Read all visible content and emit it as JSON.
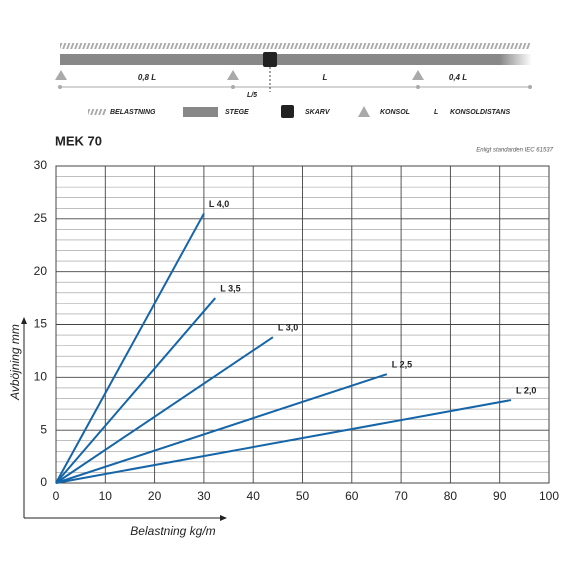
{
  "diagram": {
    "spans": [
      "0,8 L",
      "L",
      "0,4 L"
    ],
    "splice_offset": "L/5",
    "legend": [
      "BELASTNING",
      "STEGE",
      "SKARV",
      "KONSOL",
      "L",
      "KONSOLDISTANS"
    ]
  },
  "chart_data": {
    "type": "line",
    "title": "MEK 70",
    "subtitle": "Enligt standarden IEC 61537",
    "xlabel": "Belastning kg/m",
    "ylabel": "Avböjning mm",
    "xlim": [
      0,
      100
    ],
    "xticks": [
      0,
      10,
      20,
      30,
      40,
      50,
      60,
      70,
      80,
      90,
      100
    ],
    "ylim": [
      0,
      30
    ],
    "yticks": [
      0,
      5,
      10,
      15,
      20,
      25,
      30
    ],
    "grid": true,
    "minor_grid": true,
    "series": [
      {
        "name": "L 4,0",
        "color": "#1565a8",
        "x": [
          0,
          30
        ],
        "values": [
          0,
          25.5
        ]
      },
      {
        "name": "L 3,5",
        "color": "#1565a8",
        "x": [
          0,
          32.3
        ],
        "values": [
          0,
          17.5
        ]
      },
      {
        "name": "L 3,0",
        "color": "#1565a8",
        "x": [
          0,
          44
        ],
        "values": [
          0,
          13.8
        ]
      },
      {
        "name": "L 2,5",
        "color": "#1565a8",
        "x": [
          0,
          67.1
        ],
        "values": [
          0,
          10.3
        ]
      },
      {
        "name": "L 2,0",
        "color": "#1565a8",
        "x": [
          0,
          92.3
        ],
        "values": [
          0,
          7.85
        ]
      }
    ]
  }
}
